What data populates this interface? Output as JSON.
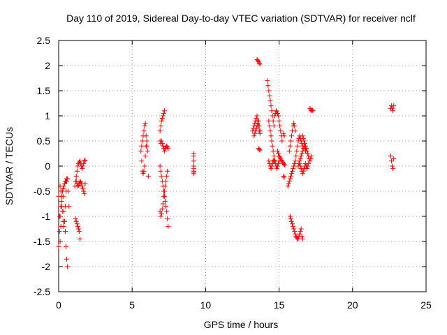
{
  "chart_data": {
    "type": "scatter",
    "title": "Day 110 of 2019, Sidereal Day-to-day VTEC variation (SDTVAR) for receiver nclf",
    "xlabel": "GPS time / hours",
    "ylabel": "SDTVAR / TECUs",
    "xlim": [
      0,
      25
    ],
    "ylim": [
      -2.5,
      2.5
    ],
    "xticks": [
      0,
      5,
      10,
      15,
      20,
      25
    ],
    "xtick_labels": [
      "0",
      "5",
      "10",
      "15",
      "20",
      "25"
    ],
    "yticks": [
      -2.5,
      -2,
      -1.5,
      -1,
      -0.5,
      0,
      0.5,
      1,
      1.5,
      2,
      2.5
    ],
    "ytick_labels": [
      "-2.5",
      "-2",
      "-1.5",
      "-1",
      "-0.5",
      "0",
      "0.5",
      "1",
      "1.5",
      "2",
      "2.5"
    ],
    "grid": true,
    "marker": "+",
    "color": "#ff0000",
    "segments": [
      {
        "x": [
          0.0,
          0.05,
          0.1,
          0.15,
          0.2,
          0.25,
          0.3,
          0.35,
          0.4,
          0.45,
          0.5,
          0.55,
          0.6
        ],
        "y": [
          -0.6,
          -1.0,
          -1.5,
          -1.2,
          -0.8,
          -0.5,
          -0.6,
          -0.9,
          -1.1,
          -1.3,
          -1.6,
          -1.85,
          -2.0
        ]
      },
      {
        "x": [
          0.0,
          0.05,
          0.1,
          0.15,
          0.2,
          0.25,
          0.3,
          0.35,
          0.4,
          0.45,
          0.5,
          0.55
        ],
        "y": [
          -1.6,
          -1.3,
          -1.0,
          -0.8,
          -0.6,
          -0.5,
          -0.45,
          -0.4,
          -0.35,
          -0.3,
          -0.3,
          -0.25
        ]
      },
      {
        "x": [
          0.1,
          0.15,
          0.2,
          0.25,
          0.3,
          0.35,
          0.4,
          0.45,
          0.5,
          0.55,
          0.6,
          0.65,
          0.7
        ],
        "y": [
          -0.4,
          -0.5,
          -0.7,
          -0.9,
          -1.1,
          -1.2,
          -1.1,
          -0.8,
          -0.5,
          -0.3,
          -0.25,
          -0.5,
          -0.8
        ]
      },
      {
        "x": [
          1.1,
          1.15,
          1.2,
          1.25,
          1.3,
          1.35,
          1.4,
          1.45,
          1.5,
          1.55,
          1.6,
          1.65,
          1.7,
          1.75,
          1.8
        ],
        "y": [
          -0.4,
          -0.3,
          -0.2,
          -0.1,
          0.0,
          0.05,
          0.08,
          0.1,
          0.05,
          0.0,
          -0.05,
          0.0,
          0.05,
          0.1,
          0.12
        ]
      },
      {
        "x": [
          1.2,
          1.25,
          1.3,
          1.35,
          1.4,
          1.45,
          1.5,
          1.55,
          1.6,
          1.65,
          1.7,
          1.75,
          1.8
        ],
        "y": [
          -0.3,
          -0.35,
          -0.4,
          -0.38,
          -0.35,
          -0.3,
          -0.32,
          -0.35,
          -0.4,
          -0.45,
          -0.5,
          -0.55,
          -0.35
        ]
      },
      {
        "x": [
          1.15,
          1.2,
          1.25,
          1.3,
          1.35,
          1.4,
          1.45
        ],
        "y": [
          -1.05,
          -1.1,
          -1.15,
          -1.2,
          -1.25,
          -1.3,
          -1.45
        ]
      },
      {
        "x": [
          5.6,
          5.65,
          5.7,
          5.75,
          5.8,
          5.85,
          5.9,
          5.95,
          6.0,
          6.05,
          6.1
        ],
        "y": [
          0.3,
          0.1,
          -0.1,
          -0.15,
          -0.1,
          0.0,
          0.2,
          0.4,
          0.5,
          0.3,
          -0.2
        ]
      },
      {
        "x": [
          5.65,
          5.7,
          5.75,
          5.8,
          5.85,
          5.9,
          5.95,
          6.0
        ],
        "y": [
          0.4,
          0.5,
          0.6,
          0.7,
          0.8,
          0.85,
          0.6,
          0.4
        ]
      },
      {
        "x": [
          6.9,
          6.95,
          7.0,
          7.05,
          7.1,
          7.15,
          7.2
        ],
        "y": [
          0.7,
          0.8,
          0.9,
          0.95,
          1.0,
          1.05,
          1.1
        ]
      },
      {
        "x": [
          6.9,
          6.95,
          7.0,
          7.05,
          7.1,
          7.15,
          7.2,
          7.25,
          7.3,
          7.35,
          7.4,
          7.45
        ],
        "y": [
          0.5,
          0.45,
          0.5,
          0.45,
          0.4,
          0.35,
          0.3,
          0.35,
          0.38,
          0.4,
          0.38,
          0.35
        ]
      },
      {
        "x": [
          6.9,
          6.95,
          7.0,
          7.05,
          7.1,
          7.15,
          7.2,
          7.25,
          7.3,
          7.35,
          7.4,
          7.45
        ],
        "y": [
          0.0,
          -0.1,
          -0.2,
          -0.3,
          -0.4,
          -0.5,
          -0.6,
          -0.7,
          -0.8,
          -0.9,
          -1.05,
          -1.2
        ]
      },
      {
        "x": [
          6.9,
          6.95,
          7.0,
          7.05,
          7.1,
          7.15,
          7.2,
          7.25,
          7.3,
          7.35,
          7.4
        ],
        "y": [
          -0.9,
          -1.0,
          -0.95,
          -0.85,
          -0.75,
          -0.6,
          -0.5,
          -0.4,
          -0.3,
          -0.2,
          -0.1
        ]
      },
      {
        "x": [
          9.2,
          9.2,
          9.2,
          9.2,
          9.2,
          9.2,
          9.2,
          9.2
        ],
        "y": [
          0.25,
          0.2,
          0.1,
          0.0,
          -0.05,
          -0.1,
          -0.12,
          -0.15
        ]
      },
      {
        "x": [
          13.2,
          13.25,
          13.3,
          13.35,
          13.4,
          13.45,
          13.5,
          13.55,
          13.6,
          13.65,
          13.7
        ],
        "y": [
          0.7,
          0.75,
          0.8,
          0.85,
          0.9,
          0.95,
          1.0,
          0.9,
          0.8,
          0.7,
          0.65
        ]
      },
      {
        "x": [
          13.3,
          13.35,
          13.4,
          13.45,
          13.5,
          13.55,
          13.6,
          13.65,
          13.7
        ],
        "y": [
          0.6,
          0.65,
          0.7,
          0.75,
          0.8,
          0.85,
          0.9,
          0.8,
          0.7
        ]
      },
      {
        "x": [
          13.5,
          13.55,
          13.6,
          13.65,
          13.7
        ],
        "y": [
          2.12,
          2.1,
          2.08,
          2.05,
          2.03
        ]
      },
      {
        "x": [
          13.6,
          13.65,
          13.7
        ],
        "y": [
          0.35,
          0.33,
          0.32
        ]
      },
      {
        "x": [
          14.2,
          14.25,
          14.3,
          14.35,
          14.4,
          14.45,
          14.5,
          14.55,
          14.6,
          14.65
        ],
        "y": [
          1.7,
          1.6,
          1.5,
          1.4,
          1.3,
          1.2,
          1.1,
          1.0,
          0.9,
          0.8
        ]
      },
      {
        "x": [
          14.3,
          14.35,
          14.4,
          14.45,
          14.5,
          14.55,
          14.6,
          14.65,
          14.7,
          14.75,
          14.8,
          14.85,
          14.9,
          14.95,
          15.0
        ],
        "y": [
          0.9,
          0.8,
          0.7,
          0.6,
          0.5,
          0.4,
          0.3,
          0.2,
          0.1,
          0.05,
          0.0,
          -0.05,
          0.0,
          0.05,
          0.1
        ]
      },
      {
        "x": [
          14.3,
          14.35,
          14.4,
          14.45,
          14.5,
          14.55,
          14.6,
          14.65,
          14.7
        ],
        "y": [
          0.1,
          0.05,
          0.0,
          -0.05,
          0.0,
          0.05,
          0.1,
          0.12,
          0.1
        ]
      },
      {
        "x": [
          14.7,
          14.75,
          14.8,
          14.85,
          14.9,
          14.95,
          15.0,
          15.05,
          15.1,
          15.15,
          15.2
        ],
        "y": [
          1.0,
          1.05,
          1.1,
          1.08,
          1.05,
          1.0,
          0.9,
          0.8,
          0.7,
          0.6,
          0.5
        ]
      },
      {
        "x": [
          14.9,
          14.95,
          15.0,
          15.05,
          15.1,
          15.15,
          15.2,
          15.25,
          15.3,
          15.35,
          15.4
        ],
        "y": [
          0.3,
          0.25,
          0.2,
          0.18,
          0.15,
          0.12,
          0.1,
          0.08,
          0.05,
          0.03,
          0.02
        ]
      },
      {
        "x": [
          15.3,
          15.35
        ],
        "y": [
          0.65,
          0.6
        ]
      },
      {
        "x": [
          15.3,
          15.35
        ],
        "y": [
          -0.2,
          -0.22
        ]
      },
      {
        "x": [
          15.6,
          15.65,
          15.7,
          15.75,
          15.8,
          15.85,
          15.9,
          15.95,
          16.0,
          16.05,
          16.1,
          16.15,
          16.2,
          16.25,
          16.3,
          16.35,
          16.4,
          16.45,
          16.5,
          16.55,
          16.6
        ],
        "y": [
          -0.4,
          -0.35,
          -0.3,
          -0.25,
          -0.2,
          -0.15,
          -0.1,
          -0.05,
          0.0,
          0.05,
          0.1,
          0.2,
          0.3,
          0.4,
          0.5,
          0.55,
          0.6,
          0.55,
          0.5,
          0.45,
          0.4
        ]
      },
      {
        "x": [
          15.7,
          15.75,
          15.8,
          15.85,
          15.9,
          15.95,
          16.0,
          16.05,
          16.1
        ],
        "y": [
          0.3,
          0.4,
          0.5,
          0.6,
          0.7,
          0.8,
          0.85,
          0.8,
          0.7
        ]
      },
      {
        "x": [
          15.75,
          15.8,
          15.85,
          15.9,
          15.95,
          16.0,
          16.05,
          16.1,
          16.15,
          16.2,
          16.25,
          16.3,
          16.35,
          16.4,
          16.45,
          16.5,
          16.55,
          16.6
        ],
        "y": [
          -1.0,
          -1.05,
          -1.1,
          -1.15,
          -1.2,
          -1.25,
          -1.3,
          -1.35,
          -1.4,
          -1.42,
          -1.45,
          -1.45,
          -1.4,
          -1.35,
          -1.3,
          -1.25,
          -1.4,
          -1.45
        ]
      },
      {
        "x": [
          16.3,
          16.35,
          16.4,
          16.45,
          16.5,
          16.55,
          16.6,
          16.65,
          16.7,
          16.75,
          16.8
        ],
        "y": [
          0.0,
          0.05,
          0.1,
          0.15,
          0.2,
          0.25,
          0.3,
          0.35,
          0.4,
          0.35,
          0.3
        ]
      },
      {
        "x": [
          16.4,
          16.45,
          16.5,
          16.55,
          16.6,
          16.65,
          16.7,
          16.75,
          16.8,
          16.85,
          16.9,
          16.95,
          17.0
        ],
        "y": [
          0.05,
          0.0,
          -0.05,
          -0.1,
          -0.15,
          -0.1,
          -0.05,
          0.0,
          0.05,
          0.0,
          -0.05,
          0.0,
          0.05
        ]
      },
      {
        "x": [
          16.6,
          16.65,
          16.7,
          16.75,
          16.8,
          16.85,
          16.9,
          16.95,
          17.0,
          17.05,
          17.1,
          17.15,
          17.2
        ],
        "y": [
          0.6,
          0.55,
          0.5,
          0.45,
          0.4,
          0.35,
          0.3,
          0.25,
          0.2,
          0.15,
          0.1,
          0.15,
          0.2
        ]
      },
      {
        "x": [
          17.1,
          17.15,
          17.2,
          17.25,
          17.3
        ],
        "y": [
          1.15,
          1.12,
          1.1,
          1.12,
          1.1
        ]
      },
      {
        "x": [
          22.6,
          22.65,
          22.7,
          22.75,
          22.8
        ],
        "y": [
          1.15,
          1.2,
          1.15,
          1.1,
          1.2
        ]
      },
      {
        "x": [
          22.6,
          22.65,
          22.7,
          22.75,
          22.8
        ],
        "y": [
          0.2,
          0.1,
          0.0,
          -0.05,
          0.15
        ]
      }
    ]
  }
}
